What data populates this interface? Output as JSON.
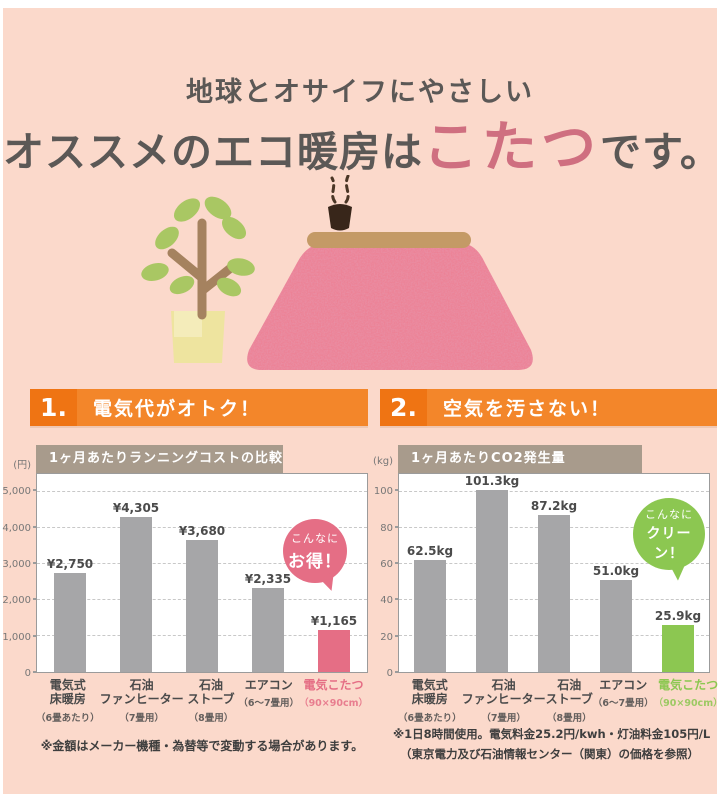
{
  "header": {
    "line1": "地球とオサイフにやさしい",
    "line2_prefix": "オススメのエコ暖房は",
    "line2_highlight": "こたつ",
    "line2_suffix": "です。"
  },
  "colors": {
    "background": "#fbd9cb",
    "heading_text": "#5b5856",
    "highlight_title": "#cf6f80",
    "section_orange": "#f3862a",
    "section_orange_dark": "#ef7413",
    "tab_taupe": "#a89b8c",
    "bar_gray": "#a6a6a8",
    "bar_pink": "#e56e85",
    "bar_green": "#8cc751"
  },
  "sections": [
    {
      "number": "1.",
      "title": "電気代がオトク！"
    },
    {
      "number": "2.",
      "title": "空気を汚さない！"
    }
  ],
  "chart_data": [
    {
      "type": "bar",
      "title": "1ヶ月あたりランニングコストの比較",
      "unit_label": "(円)",
      "ylabel": "円",
      "ylim": [
        0,
        5500
      ],
      "grid": true,
      "yticks": [
        0,
        1000,
        2000,
        3000,
        4000,
        5000
      ],
      "ytick_labels": [
        "0",
        "1,000",
        "2,000",
        "3,000",
        "4,000",
        "5,000"
      ],
      "categories": [
        {
          "lines": [
            "電気式",
            "床暖房"
          ],
          "note": "（6畳あたり）"
        },
        {
          "lines": [
            "石油",
            "ファンヒーター"
          ],
          "note": "（7畳用）"
        },
        {
          "lines": [
            "石油",
            "ストーブ"
          ],
          "note": "（8畳用）"
        },
        {
          "lines": [
            "エアコン"
          ],
          "note": "（6～7畳用）"
        },
        {
          "lines": [
            "電気こたつ"
          ],
          "note": "（90×90cm）"
        }
      ],
      "values": [
        2750,
        4305,
        3680,
        2335,
        1165
      ],
      "value_labels": [
        "¥2,750",
        "¥4,305",
        "¥3,680",
        "¥2,335",
        "¥1,165"
      ],
      "highlight_index": 4,
      "highlight_color": "#e56e85",
      "badge": {
        "line1": "こんなに",
        "line2": "お得！"
      },
      "footnotes": [
        "※金額はメーカー機種・為替等で変動する場合があります。"
      ]
    },
    {
      "type": "bar",
      "title": "1ヶ月あたりCO2発生量",
      "unit_label": "(kg)",
      "ylabel": "kg",
      "ylim": [
        0,
        110
      ],
      "grid": true,
      "yticks": [
        0,
        20,
        40,
        60,
        80,
        100
      ],
      "ytick_labels": [
        "0",
        "20",
        "40",
        "60",
        "80",
        "100"
      ],
      "categories": [
        {
          "lines": [
            "電気式",
            "床暖房"
          ],
          "note": "（6畳あたり）"
        },
        {
          "lines": [
            "石油",
            "ファンヒーター"
          ],
          "note": "（7畳用）"
        },
        {
          "lines": [
            "石油",
            "ストーブ"
          ],
          "note": "（8畳用）"
        },
        {
          "lines": [
            "エアコン"
          ],
          "note": "（6～7畳用）"
        },
        {
          "lines": [
            "電気こたつ"
          ],
          "note": "（90×90cm）"
        }
      ],
      "values": [
        62.5,
        101.3,
        87.2,
        51.0,
        25.9
      ],
      "value_labels": [
        "62.5kg",
        "101.3kg",
        "87.2kg",
        "51.0kg",
        "25.9kg"
      ],
      "highlight_index": 4,
      "highlight_color": "#8cc751",
      "badge": {
        "line1": "こんなに",
        "line2": "クリーン！"
      },
      "footnotes": [
        "※1日8時間使用。電気料金25.2円/kwh・灯油料金105円/L",
        "（東京電力及び石油情報センター（関東）の価格を参照）"
      ]
    }
  ]
}
